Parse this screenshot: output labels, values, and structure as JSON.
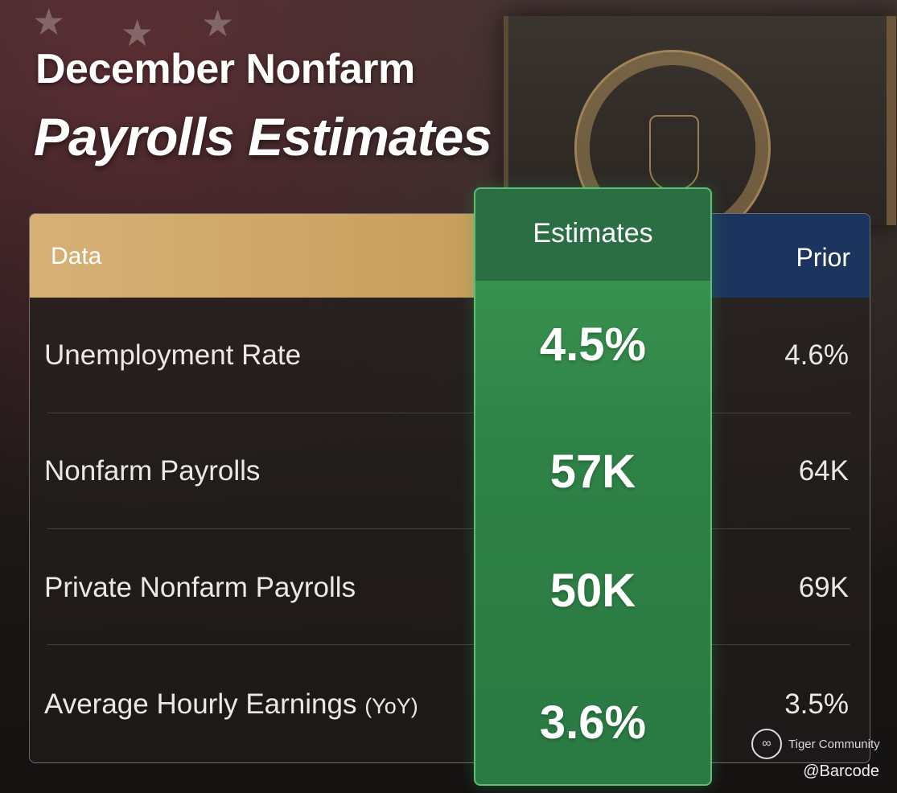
{
  "title": {
    "line1": "December Nonfarm",
    "line2": "Payrolls Estimates"
  },
  "table": {
    "headers": {
      "data": "Data",
      "estimates": "Estimates",
      "prior": "Prior"
    },
    "rows": [
      {
        "label": "Unemployment Rate",
        "label_suffix": "",
        "estimate": "4.5%",
        "prior": "4.6%"
      },
      {
        "label": "Nonfarm Payrolls",
        "label_suffix": "",
        "estimate": "57K",
        "prior": "64K"
      },
      {
        "label": "Private Nonfarm Payrolls",
        "label_suffix": "",
        "estimate": "50K",
        "prior": "69K"
      },
      {
        "label": "Average Hourly Earnings",
        "label_suffix": "(YoY)",
        "estimate": "3.6%",
        "prior": "3.5%"
      }
    ]
  },
  "watermark": {
    "brand": "Tiger Community",
    "handle": "@Barcode",
    "icon": "tiger-logo-icon"
  },
  "colors": {
    "data_header": "#d6b176",
    "estimates_column": "#2f8347",
    "prior_header": "#1c355e"
  }
}
